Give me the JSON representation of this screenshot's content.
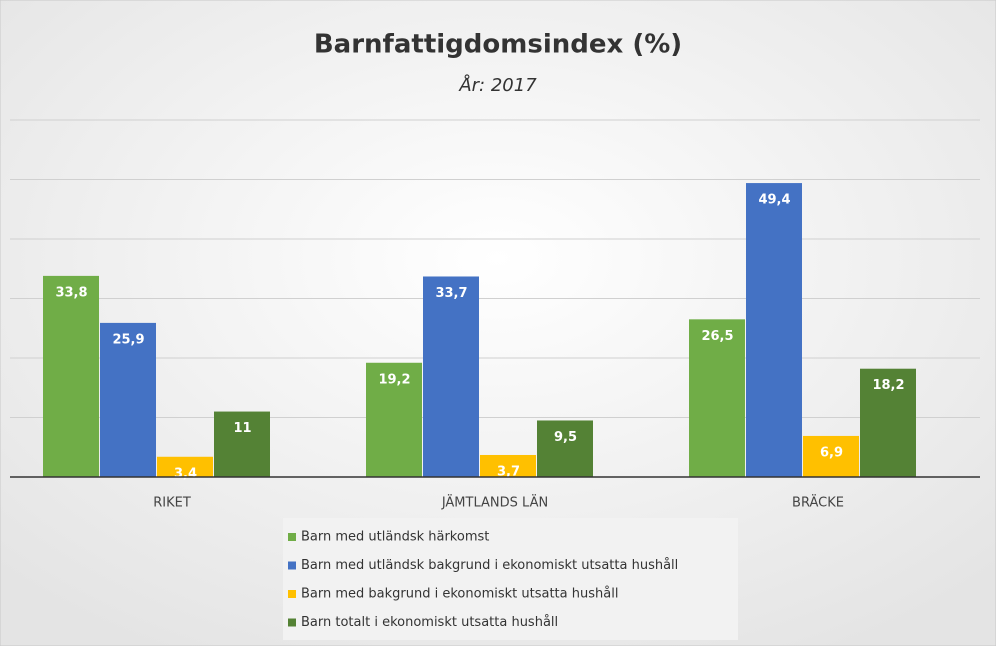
{
  "chart_data": {
    "type": "bar",
    "title": "Barnfattigdomsindex (%)",
    "subtitle": "År: 2017",
    "categories": [
      "RIKET",
      "JÄMTLANDS LÄN",
      "BRÄCKE"
    ],
    "series": [
      {
        "name": "Barn med utländsk härkomst",
        "color": "#70ad47",
        "values": [
          33.8,
          19.2,
          26.5
        ],
        "value_labels": [
          "33,8",
          "19,2",
          "26,5"
        ]
      },
      {
        "name": "Barn med utländsk bakgrund i ekonomiskt utsatta hushåll",
        "color": "#4472c4",
        "values": [
          25.9,
          33.7,
          49.4
        ],
        "value_labels": [
          "25,9",
          "33,7",
          "49,4"
        ]
      },
      {
        "name": "Barn med bakgrund i ekonomiskt utsatta hushåll",
        "color": "#ffc000",
        "values": [
          3.4,
          3.7,
          6.9
        ],
        "value_labels": [
          "3,4",
          "3,7",
          "6,9"
        ]
      },
      {
        "name": "Barn totalt i ekonomiskt utsatta hushåll",
        "color": "#548235",
        "values": [
          11,
          9.5,
          18.2
        ],
        "value_labels": [
          "11",
          "9,5",
          "18,2"
        ]
      }
    ],
    "ylim": [
      0,
      60
    ],
    "yticks": [
      0,
      10,
      20,
      30,
      40,
      50,
      60
    ],
    "grid": true
  }
}
